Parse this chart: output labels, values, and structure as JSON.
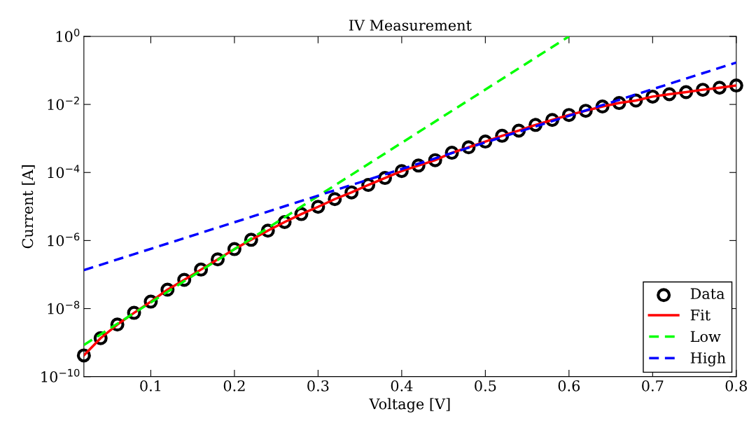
{
  "chart_data": {
    "type": "line",
    "title": "IV Measurement",
    "xlabel": "Voltage [V]",
    "ylabel": "Current [A]",
    "log": "y",
    "xlim": [
      0.02,
      0.8
    ],
    "ylim": [
      1e-10,
      1
    ],
    "xticks": [
      0.1,
      0.2,
      0.3,
      0.4,
      0.5,
      0.6,
      0.7,
      0.8
    ],
    "yticks": [
      {
        "value": 1e-10,
        "label": "10$^{−10}$"
      },
      {
        "value": 1e-08,
        "label": "10$^{−8}$"
      },
      {
        "value": 1e-06,
        "label": "10$^{−6}$"
      },
      {
        "value": 0.0001,
        "label": "10$^{−4}$"
      },
      {
        "value": 0.01,
        "label": "10$^{−2}$"
      },
      {
        "value": 1,
        "label": "10$^{0}$"
      }
    ],
    "grid": false,
    "legend": "bottom right",
    "x": [
      0.02,
      0.04,
      0.06,
      0.08,
      0.1,
      0.12,
      0.14,
      0.16,
      0.18,
      0.2,
      0.22,
      0.24,
      0.26,
      0.28,
      0.3,
      0.32,
      0.34,
      0.36,
      0.38,
      0.4,
      0.42,
      0.44,
      0.46,
      0.48,
      0.5,
      0.52,
      0.54,
      0.56,
      0.58,
      0.6,
      0.62,
      0.64,
      0.66,
      0.68,
      0.7,
      0.72,
      0.74,
      0.76,
      0.78,
      0.8
    ],
    "series": [
      {
        "name": "Data",
        "type": "scatter",
        "marker": "circle",
        "color": "#000000",
        "values": [
          4.2e-10,
          1.35e-09,
          3.4e-09,
          7.5e-09,
          1.6e-08,
          3.6e-08,
          7e-08,
          1.4e-07,
          2.8e-07,
          5.6e-07,
          1.05e-06,
          1.95e-06,
          3.5e-06,
          6e-06,
          9.8e-06,
          1.65e-05,
          2.6e-05,
          4.3e-05,
          6.9e-05,
          0.00011,
          0.00016,
          0.00023,
          0.00038,
          0.00055,
          0.00081,
          0.0012,
          0.0017,
          0.0025,
          0.0035,
          0.0049,
          0.0065,
          0.0087,
          0.011,
          0.013,
          0.017,
          0.02,
          0.023,
          0.027,
          0.031,
          0.036
        ]
      },
      {
        "name": "Fit",
        "line_style": "solid",
        "color": "#ff0000",
        "values": [
          4.2e-10,
          1.35e-09,
          3.4e-09,
          7.5e-09,
          1.6e-08,
          3.6e-08,
          7e-08,
          1.4e-07,
          2.8e-07,
          5.6e-07,
          1.05e-06,
          1.95e-06,
          3.5e-06,
          6e-06,
          9.8e-06,
          1.65e-05,
          2.6e-05,
          4.3e-05,
          6.9e-05,
          0.00011,
          0.00016,
          0.00023,
          0.00038,
          0.00055,
          0.00081,
          0.0012,
          0.0017,
          0.0025,
          0.0035,
          0.0049,
          0.0065,
          0.0087,
          0.011,
          0.013,
          0.017,
          0.02,
          0.023,
          0.027,
          0.031,
          0.036
        ]
      },
      {
        "name": "Low",
        "line_style": "dashed",
        "color": "#00ff00",
        "x": [
          0.02,
          0.6
        ],
        "values": [
          8.5e-10,
          1
        ]
      },
      {
        "name": "High",
        "line_style": "dashed",
        "color": "#0000ff",
        "x": [
          0.02,
          0.8
        ],
        "values": [
          1.35e-07,
          0.17
        ]
      }
    ]
  }
}
